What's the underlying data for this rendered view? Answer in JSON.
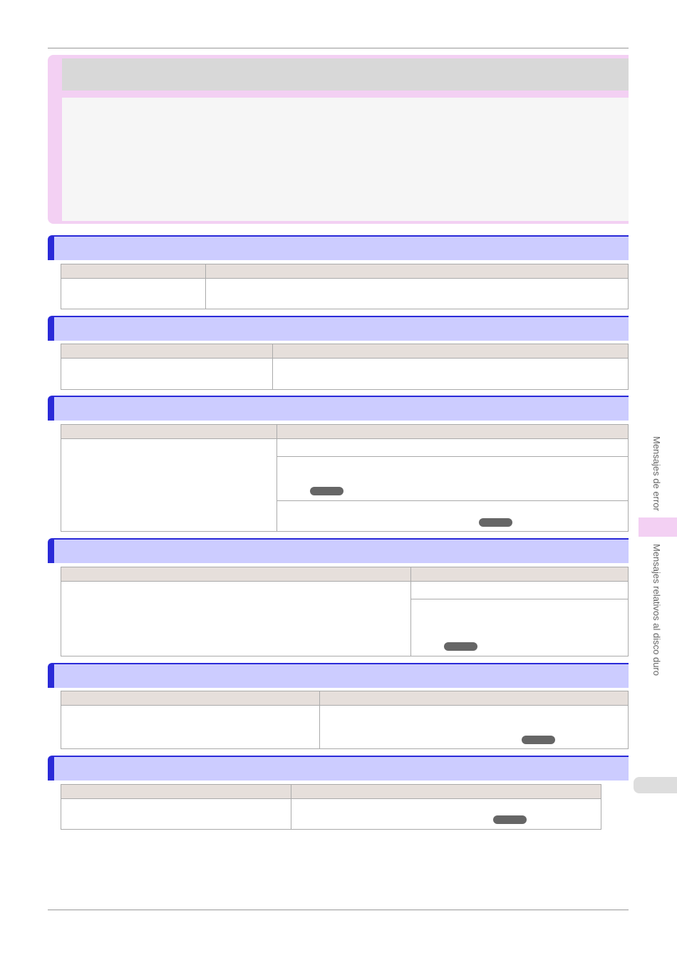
{
  "side_tabs": {
    "chapter": "Mensajes de error",
    "section": "Mensajes relativos al disco duro"
  }
}
